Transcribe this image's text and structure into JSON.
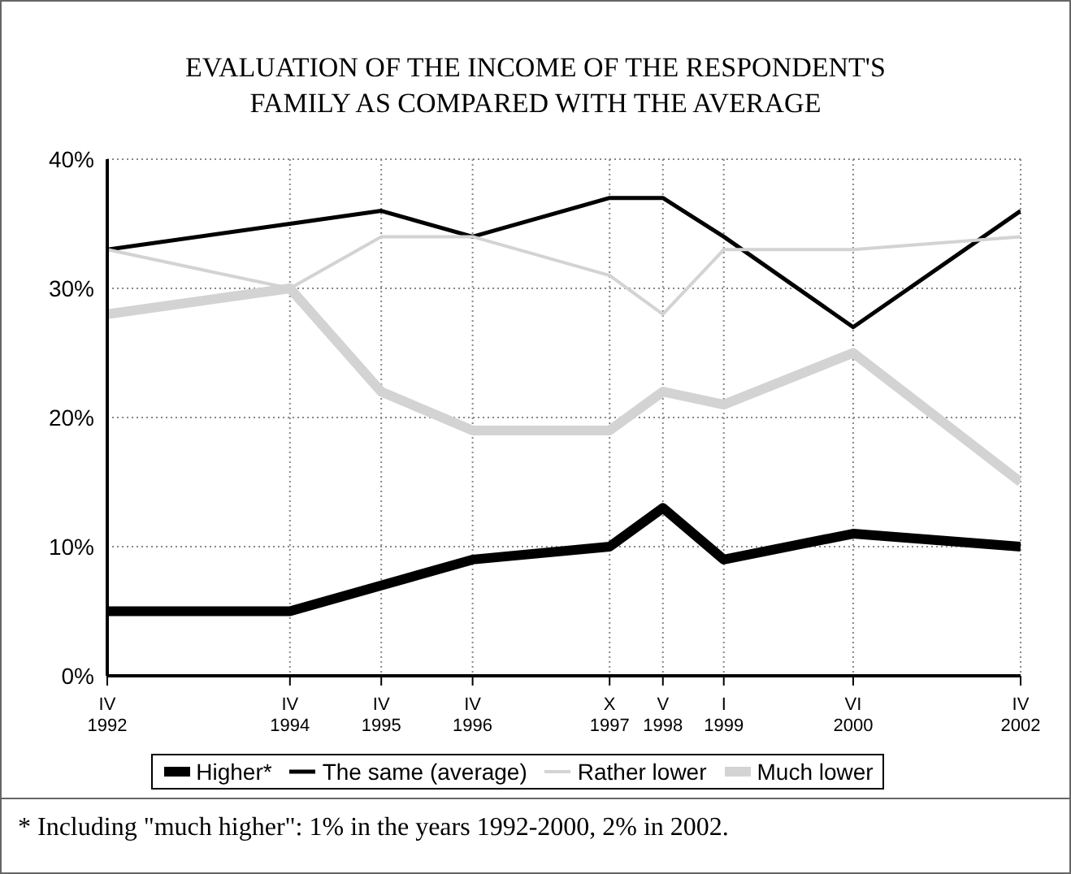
{
  "chart_data": {
    "type": "line",
    "title": "EVALUATION OF THE INCOME OF THE RESPONDENT'S FAMILY AS COMPARED WITH THE AVERAGE",
    "x": [
      "1992-04",
      "1994-04",
      "1995-04",
      "1996-04",
      "1997-10",
      "1998-05",
      "1999-01",
      "2000-06",
      "2002-04"
    ],
    "xlim": [
      "1992-04",
      "2002-04"
    ],
    "xticks": [
      {
        "value": "1992-04",
        "label": "IV 1992"
      },
      {
        "value": "1994-04",
        "label": "IV 1994"
      },
      {
        "value": "1995-04",
        "label": "IV 1995"
      },
      {
        "value": "1996-04",
        "label": "IV 1996"
      },
      {
        "value": "1997-10",
        "label": "X 1997"
      },
      {
        "value": "1998-05",
        "label": "V 1998"
      },
      {
        "value": "1999-01",
        "label": "I 1999"
      },
      {
        "value": "2000-06",
        "label": "VI 2000"
      },
      {
        "value": "2002-04",
        "label": "IV 2002"
      }
    ],
    "ylim": [
      0,
      40
    ],
    "yticks": [
      {
        "value": 0,
        "label": "0%"
      },
      {
        "value": 10,
        "label": "10%"
      },
      {
        "value": 20,
        "label": "20%"
      },
      {
        "value": 30,
        "label": "30%"
      },
      {
        "value": 40,
        "label": "40%"
      }
    ],
    "series": [
      {
        "name": "Higher*",
        "color": "#000000",
        "values": [
          5,
          5,
          7,
          9,
          10,
          13,
          9,
          11,
          10
        ]
      },
      {
        "name": "The same (average)",
        "color": "#000000",
        "values": [
          33,
          35,
          36,
          34,
          37,
          37,
          34,
          27,
          36
        ]
      },
      {
        "name": "Rather lower",
        "color": "#d3d3d3",
        "values": [
          33,
          30,
          34,
          34,
          31,
          28,
          33,
          33,
          34
        ]
      },
      {
        "name": "Much lower",
        "color": "#d3d3d3",
        "values": [
          28,
          30,
          22,
          19,
          19,
          22,
          21,
          25,
          15
        ]
      }
    ],
    "grid": true,
    "legend": "bottom",
    "marker": "none",
    "line_style": "solid",
    "annotations": [
      "* Including \"much higher\": 1% in the years 1992-2000, 2% in 2002."
    ]
  }
}
